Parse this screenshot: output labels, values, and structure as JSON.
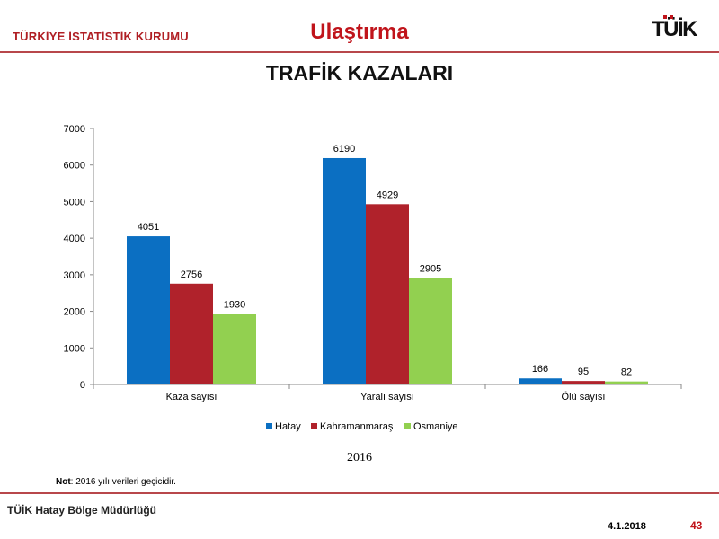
{
  "header": {
    "org_name": "TÜRKİYE İSTATİSTİK KURUMU",
    "section_title": "Ulaştırma",
    "logo_text": "TÜİK"
  },
  "main_title": "TRAFİK KAZALARI",
  "chart_data": {
    "type": "bar",
    "categories": [
      "Kaza sayısı",
      "Yaralı sayısı",
      "Ölü sayısı"
    ],
    "series": [
      {
        "name": "Hatay",
        "values": [
          4051,
          6190,
          166
        ],
        "color": "#0b6fc2"
      },
      {
        "name": "Kahramanmaraş",
        "values": [
          2756,
          4929,
          95
        ],
        "color": "#b0222b"
      },
      {
        "name": "Osmaniye",
        "values": [
          1930,
          2905,
          82
        ],
        "color": "#92d050"
      }
    ],
    "ylim": [
      0,
      7000
    ],
    "yticks": [
      0,
      1000,
      2000,
      3000,
      4000,
      5000,
      6000,
      7000
    ],
    "xlabel": "2016",
    "legend_position": "bottom",
    "grid": false
  },
  "note": {
    "label": "Not",
    "text": ": 2016 yılı verileri geçicidir."
  },
  "footer": {
    "org": "TÜİK Hatay Bölge Müdürlüğü",
    "date": "4.1.2018",
    "page": "43"
  }
}
